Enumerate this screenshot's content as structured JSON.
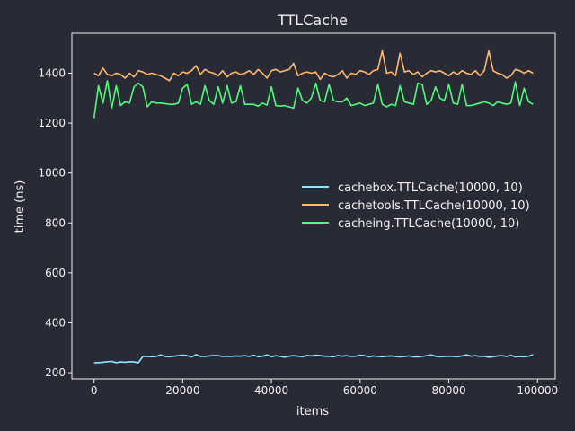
{
  "chart_data": {
    "type": "line",
    "title": "TTLCache",
    "xlabel": "items",
    "ylabel": "time (ns)",
    "xlim": [
      -5000,
      104000
    ],
    "ylim": [
      175,
      1560
    ],
    "xticks": [
      0,
      20000,
      40000,
      60000,
      80000,
      100000
    ],
    "xtick_labels": [
      "0",
      "20000",
      "40000",
      "60000",
      "80000",
      "100000"
    ],
    "yticks": [
      200,
      400,
      600,
      800,
      1000,
      1200,
      1400
    ],
    "ytick_labels": [
      "200",
      "400",
      "600",
      "800",
      "1000",
      "1200",
      "1400"
    ],
    "grid": false,
    "legend": "center-right",
    "x": [
      0,
      1000,
      2000,
      3000,
      4000,
      5000,
      6000,
      7000,
      8000,
      9000,
      10000,
      11000,
      12000,
      13000,
      14000,
      15000,
      16000,
      17000,
      18000,
      19000,
      20000,
      21000,
      22000,
      23000,
      24000,
      25000,
      26000,
      27000,
      28000,
      29000,
      30000,
      31000,
      32000,
      33000,
      34000,
      35000,
      36000,
      37000,
      38000,
      39000,
      40000,
      41000,
      42000,
      43000,
      44000,
      45000,
      46000,
      47000,
      48000,
      49000,
      50000,
      51000,
      52000,
      53000,
      54000,
      55000,
      56000,
      57000,
      58000,
      59000,
      60000,
      61000,
      62000,
      63000,
      64000,
      65000,
      66000,
      67000,
      68000,
      69000,
      70000,
      71000,
      72000,
      73000,
      74000,
      75000,
      76000,
      77000,
      78000,
      79000,
      80000,
      81000,
      82000,
      83000,
      84000,
      85000,
      86000,
      87000,
      88000,
      89000,
      90000,
      91000,
      92000,
      93000,
      94000,
      95000,
      96000,
      97000,
      98000,
      99000
    ],
    "series": [
      {
        "name": "cachebox.TTLCache(10000, 10)",
        "color": "#8be9fd",
        "values": [
          240,
          240,
          242,
          244,
          245,
          240,
          243,
          242,
          244,
          243,
          240,
          265,
          265,
          264,
          265,
          271,
          265,
          264,
          266,
          268,
          270,
          268,
          263,
          272,
          265,
          265,
          267,
          269,
          268,
          265,
          266,
          265,
          267,
          266,
          268,
          265,
          270,
          264,
          266,
          271,
          264,
          268,
          265,
          262,
          266,
          268,
          266,
          264,
          269,
          267,
          270,
          268,
          266,
          265,
          264,
          269,
          266,
          268,
          265,
          266,
          270,
          268,
          263,
          267,
          265,
          264,
          266,
          267,
          265,
          263,
          265,
          267,
          264,
          263,
          265,
          268,
          271,
          266,
          264,
          265,
          266,
          265,
          264,
          267,
          271,
          266,
          268,
          265,
          266,
          262,
          264,
          267,
          268,
          265,
          270,
          263,
          265,
          264,
          266,
          272
        ]
      },
      {
        "name": "cachetools.TTLCache(10000, 10)",
        "color": "#ffb86c",
        "values": [
          1400,
          1390,
          1420,
          1395,
          1390,
          1400,
          1395,
          1380,
          1400,
          1385,
          1410,
          1405,
          1395,
          1400,
          1395,
          1390,
          1380,
          1370,
          1400,
          1390,
          1405,
          1400,
          1410,
          1430,
          1395,
          1415,
          1405,
          1400,
          1390,
          1410,
          1385,
          1400,
          1405,
          1395,
          1400,
          1410,
          1395,
          1415,
          1400,
          1380,
          1410,
          1415,
          1405,
          1410,
          1415,
          1440,
          1390,
          1400,
          1405,
          1400,
          1405,
          1375,
          1400,
          1390,
          1385,
          1395,
          1410,
          1380,
          1400,
          1395,
          1410,
          1405,
          1395,
          1410,
          1415,
          1490,
          1400,
          1405,
          1390,
          1480,
          1405,
          1410,
          1395,
          1405,
          1385,
          1400,
          1410,
          1405,
          1410,
          1400,
          1390,
          1405,
          1395,
          1410,
          1400,
          1395,
          1410,
          1390,
          1410,
          1490,
          1410,
          1400,
          1395,
          1380,
          1390,
          1415,
          1410,
          1400,
          1410,
          1400
        ]
      },
      {
        "name": "cacheing.TTLCache(10000, 10)",
        "color": "#50fa7b",
        "values": [
          1220,
          1350,
          1280,
          1370,
          1260,
          1350,
          1270,
          1285,
          1280,
          1345,
          1360,
          1345,
          1265,
          1285,
          1280,
          1280,
          1278,
          1275,
          1275,
          1280,
          1340,
          1355,
          1275,
          1285,
          1275,
          1350,
          1290,
          1275,
          1345,
          1280,
          1350,
          1280,
          1285,
          1350,
          1275,
          1275,
          1275,
          1268,
          1280,
          1272,
          1345,
          1270,
          1268,
          1270,
          1265,
          1260,
          1340,
          1290,
          1280,
          1300,
          1360,
          1290,
          1285,
          1355,
          1290,
          1285,
          1285,
          1300,
          1270,
          1275,
          1280,
          1270,
          1275,
          1280,
          1355,
          1275,
          1265,
          1275,
          1270,
          1350,
          1285,
          1280,
          1275,
          1360,
          1355,
          1275,
          1290,
          1345,
          1300,
          1290,
          1355,
          1280,
          1275,
          1355,
          1270,
          1270,
          1275,
          1280,
          1285,
          1280,
          1270,
          1285,
          1280,
          1275,
          1280,
          1365,
          1270,
          1340,
          1285,
          1275
        ]
      }
    ]
  },
  "colors": {
    "background": "#282a36",
    "axes": "#f2f2f2"
  }
}
